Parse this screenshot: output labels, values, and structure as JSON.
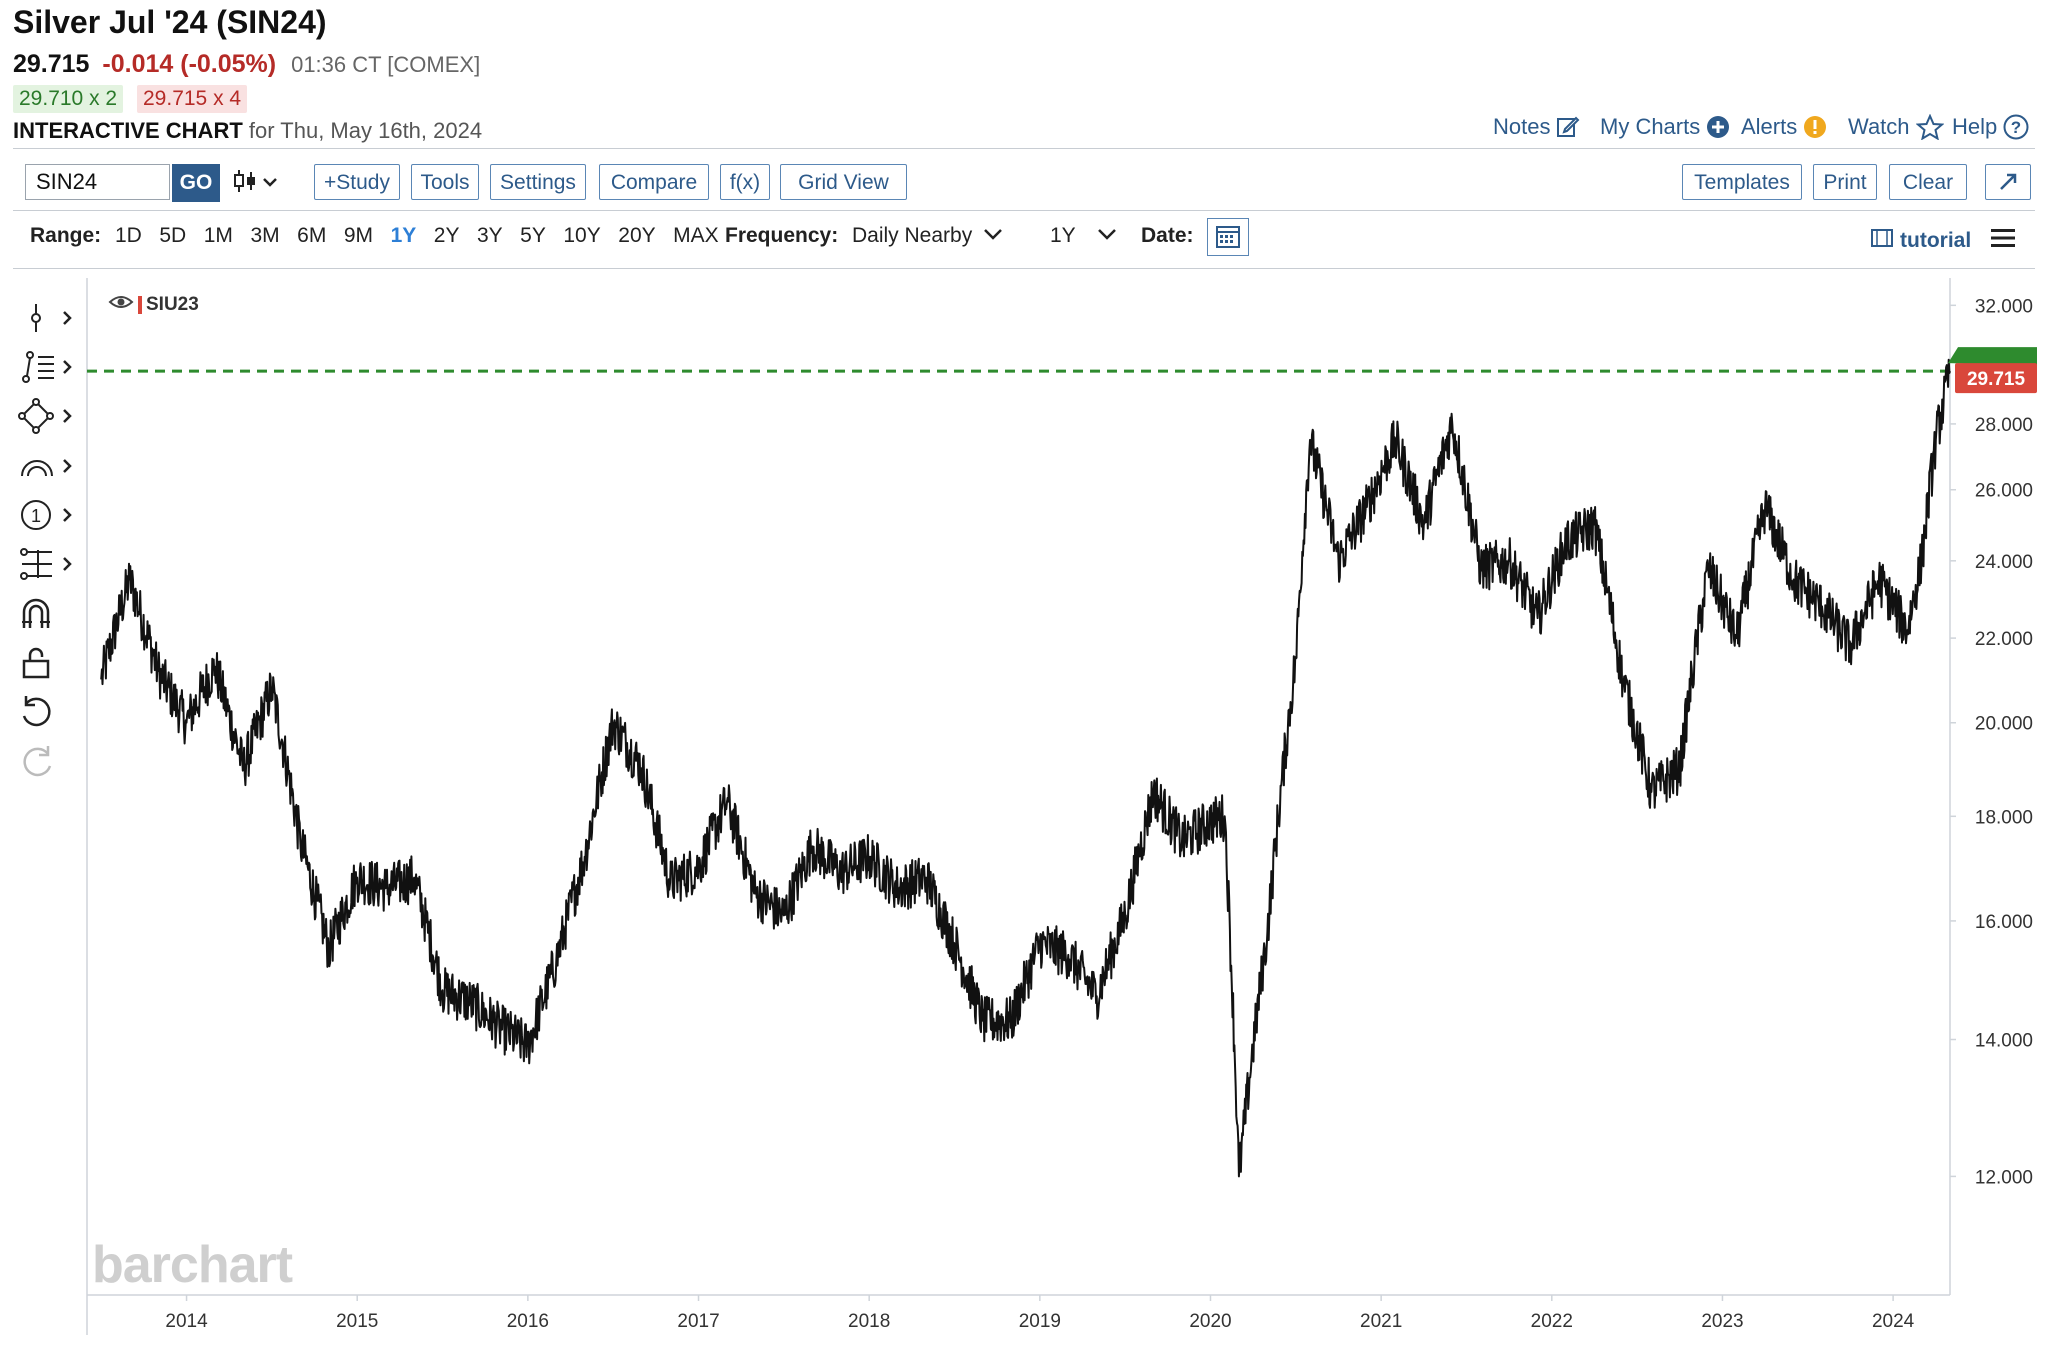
{
  "header": {
    "title": "Silver Jul '24 (SIN24)",
    "last": "29.715",
    "change": "-0.014 (-0.05%)",
    "time": "01:36 CT [COMEX]",
    "bid": "29.710 x 2",
    "ask": "29.715 x 4",
    "chart_label": "INTERACTIVE CHART",
    "chart_date": "for Thu, May 16th, 2024"
  },
  "topnav": {
    "notes": "Notes",
    "my_charts": "My Charts",
    "alerts": "Alerts",
    "watch": "Watch",
    "help": "Help"
  },
  "toolbar": {
    "symbol_value": "SIN24",
    "go_label": "GO",
    "study": "+Study",
    "tools": "Tools",
    "settings": "Settings",
    "compare": "Compare",
    "fx": "f(x)",
    "grid_view": "Grid View",
    "templates": "Templates",
    "print": "Print",
    "clear": "Clear"
  },
  "range_bar": {
    "range_label": "Range:",
    "ranges": [
      "1D",
      "5D",
      "1M",
      "3M",
      "6M",
      "9M",
      "1Y",
      "2Y",
      "3Y",
      "5Y",
      "10Y",
      "20Y",
      "MAX"
    ],
    "active_range": "1Y",
    "frequency_label": "Frequency:",
    "frequency_value": "Daily Nearby",
    "period_value": "1Y",
    "date_label": "Date:",
    "tutorial_label": "tutorial"
  },
  "legend": {
    "symbol": "SIU23"
  },
  "watermark": "barchart",
  "colors": {
    "accent": "#2d5a8a",
    "price_line": "#111111",
    "level_line": "#2e8b2e",
    "down": "#b52b27",
    "last_price_bg": "#d9473b"
  },
  "chart_data": {
    "type": "line",
    "series": [
      {
        "name": "SIU23",
        "x": [
          "2013-07",
          "2013-09",
          "2013-11",
          "2014-01",
          "2014-03",
          "2014-05",
          "2014-07",
          "2014-09",
          "2014-11",
          "2015-01",
          "2015-03",
          "2015-05",
          "2015-07",
          "2015-09",
          "2015-11",
          "2016-01",
          "2016-03",
          "2016-05",
          "2016-07",
          "2016-09",
          "2016-11",
          "2017-01",
          "2017-03",
          "2017-05",
          "2017-07",
          "2017-09",
          "2017-11",
          "2018-01",
          "2018-03",
          "2018-05",
          "2018-07",
          "2018-09",
          "2018-11",
          "2019-01",
          "2019-03",
          "2019-05",
          "2019-07",
          "2019-09",
          "2019-11",
          "2020-01",
          "2020-02",
          "2020-03",
          "2020-05",
          "2020-07",
          "2020-08",
          "2020-10",
          "2020-12",
          "2021-02",
          "2021-04",
          "2021-06",
          "2021-08",
          "2021-10",
          "2021-12",
          "2022-02",
          "2022-04",
          "2022-06",
          "2022-08",
          "2022-10",
          "2022-12",
          "2023-02",
          "2023-04",
          "2023-06",
          "2023-08",
          "2023-10",
          "2023-12",
          "2024-02",
          "2024-03",
          "2024-04",
          "2024-05"
        ],
        "values": [
          21.0,
          23.5,
          21.2,
          20.0,
          21.3,
          19.0,
          20.8,
          17.5,
          15.5,
          16.8,
          16.6,
          16.8,
          14.8,
          14.6,
          14.2,
          13.9,
          15.3,
          17.2,
          20.0,
          19.0,
          16.7,
          17.0,
          18.3,
          16.5,
          16.1,
          17.4,
          16.9,
          17.2,
          16.6,
          16.8,
          15.6,
          14.3,
          14.3,
          15.6,
          15.4,
          14.7,
          16.1,
          18.5,
          17.5,
          17.9,
          18.0,
          12.0,
          15.8,
          21.5,
          27.5,
          24.0,
          25.5,
          27.5,
          25.0,
          28.0,
          23.8,
          24.0,
          22.5,
          24.5,
          25.0,
          21.0,
          18.5,
          19.0,
          23.8,
          22.0,
          25.5,
          23.5,
          22.8,
          21.8,
          23.5,
          22.2,
          24.0,
          27.5,
          29.715
        ]
      }
    ],
    "y_ticks": [
      "12.000",
      "14.000",
      "16.000",
      "18.000",
      "20.000",
      "22.000",
      "24.000",
      "26.000",
      "28.000",
      "32.000"
    ],
    "x_ticks": [
      "2014",
      "2015",
      "2016",
      "2017",
      "2018",
      "2019",
      "2020",
      "2021",
      "2022",
      "2023",
      "2024"
    ],
    "y_scale": "log",
    "ylim": [
      10.5,
      33.0
    ],
    "xlim": [
      "2013-06",
      "2024-05"
    ],
    "last_price": "29.715",
    "reference_line": {
      "value": 29.715,
      "style": "dashed"
    },
    "grid": false
  }
}
